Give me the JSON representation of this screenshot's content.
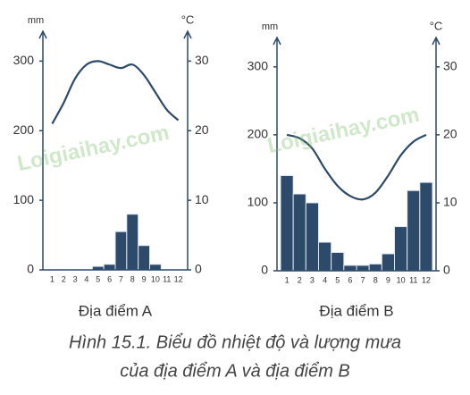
{
  "chart_data": [
    {
      "type": "climate",
      "title": "Địa điểm A",
      "y_label": "mm",
      "y2_label": "°C",
      "categories": [
        "1",
        "2",
        "3",
        "4",
        "5",
        "6",
        "7",
        "8",
        "9",
        "10",
        "11",
        "12"
      ],
      "series": [
        {
          "name": "Lượng mưa",
          "kind": "bar",
          "color": "#2d4a6a",
          "values": [
            0,
            0,
            0,
            0,
            5,
            8,
            55,
            80,
            35,
            8,
            0,
            0
          ]
        },
        {
          "name": "Nhiệt độ",
          "kind": "line",
          "axis": "y2",
          "color": "#2d4a6a",
          "values": [
            21,
            24,
            27.5,
            29.5,
            30,
            29.5,
            29,
            29.5,
            28,
            25.5,
            23,
            21.5
          ]
        }
      ],
      "ylim": [
        0,
        330
      ],
      "yticks": [
        0,
        100,
        200,
        300
      ],
      "y2lim": [
        0,
        33
      ],
      "y2ticks": [
        0,
        10,
        20,
        30
      ]
    },
    {
      "type": "climate",
      "title": "Địa điểm B",
      "y_label": "mm",
      "y2_label": "°C",
      "categories": [
        "1",
        "2",
        "3",
        "4",
        "5",
        "6",
        "7",
        "8",
        "9",
        "10",
        "11",
        "12"
      ],
      "series": [
        {
          "name": "Lượng mưa",
          "kind": "bar",
          "color": "#2d4a6a",
          "values": [
            140,
            113,
            100,
            42,
            27,
            8,
            8,
            10,
            25,
            65,
            118,
            130
          ]
        },
        {
          "name": "Nhiệt độ",
          "kind": "line",
          "axis": "y2",
          "color": "#2d4a6a",
          "values": [
            20,
            19.5,
            18,
            15,
            12.5,
            11,
            10.5,
            11.5,
            14,
            17,
            19,
            20
          ]
        }
      ],
      "ylim": [
        0,
        330
      ],
      "yticks": [
        0,
        100,
        200,
        300
      ],
      "y2lim": [
        0,
        33
      ],
      "y2ticks": [
        0,
        10,
        20,
        30
      ]
    }
  ],
  "caption": [
    "Hình 15.1. Biểu đồ nhiệt độ và lượng mưa",
    "của địa điểm A và địa điểm B"
  ],
  "watermark": "Loigiaihay.com"
}
